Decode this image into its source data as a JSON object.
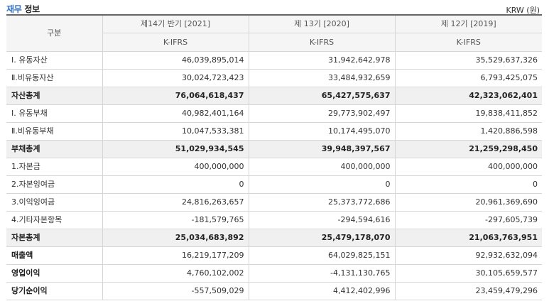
{
  "header": {
    "title_part1": "재무",
    "title_part2": "정보",
    "unit": "KRW (원)"
  },
  "table": {
    "gubun": "구분",
    "columns": [
      {
        "period": "제14기 반기 [2021]",
        "standard": "K-IFRS"
      },
      {
        "period": "제 13기 [2020]",
        "standard": "K-IFRS"
      },
      {
        "period": "제 12기 [2019]",
        "standard": "K-IFRS"
      }
    ],
    "rows": [
      {
        "label": "Ⅰ. 유동자산",
        "values": [
          "46,039,895,014",
          "31,942,642,978",
          "35,529,637,326"
        ]
      },
      {
        "label": "Ⅱ.비유동자산",
        "values": [
          "30,024,723,423",
          "33,484,932,659",
          "6,793,425,075"
        ]
      },
      {
        "label": "자산총계",
        "values": [
          "76,064,618,437",
          "65,427,575,637",
          "42,323,062,401"
        ]
      },
      {
        "label": "Ⅰ. 유동부채",
        "values": [
          "40,982,401,164",
          "29,773,902,497",
          "19,838,411,852"
        ]
      },
      {
        "label": "Ⅱ.비유동부채",
        "values": [
          "10,047,533,381",
          "10,174,495,070",
          "1,420,886,598"
        ]
      },
      {
        "label": "부채총계",
        "values": [
          "51,029,934,545",
          "39,948,397,567",
          "21,259,298,450"
        ]
      },
      {
        "label": "1.자본금",
        "values": [
          "400,000,000",
          "400,000,000",
          "400,000,000"
        ]
      },
      {
        "label": "2.자본잉여금",
        "values": [
          "0",
          "0",
          "0"
        ]
      },
      {
        "label": "3.이익잉여금",
        "values": [
          "24,816,263,657",
          "25,373,772,686",
          "20,961,369,690"
        ]
      },
      {
        "label": "4.기타자본항목",
        "values": [
          "-181,579,765",
          "-294,594,616",
          "-297,605,739"
        ]
      },
      {
        "label": "자본총계",
        "values": [
          "25,034,683,892",
          "25,479,178,070",
          "21,063,763,951"
        ]
      },
      {
        "label": "매출액",
        "values": [
          "16,219,177,209",
          "64,029,825,151",
          "92,932,632,094"
        ]
      },
      {
        "label": "영업이익",
        "values": [
          "4,760,102,002",
          "-4,131,130,765",
          "30,105,659,577"
        ]
      },
      {
        "label": "당기순이익",
        "values": [
          "-557,509,029",
          "4,412,402,996",
          "23,459,479,296"
        ]
      }
    ]
  }
}
